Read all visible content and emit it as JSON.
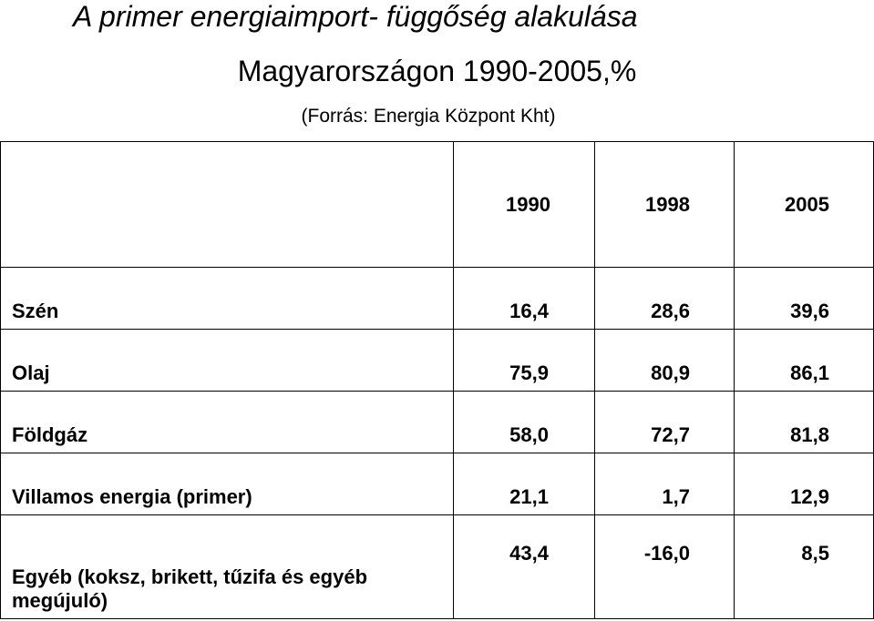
{
  "header": {
    "title_line1": "A primer energiaimport- függőség alakulása",
    "title_line2": "Magyarországon  1990-2005,%",
    "source": "(Forrás: Energia Központ Kht)"
  },
  "table": {
    "columns": [
      "1990",
      "1998",
      "2005"
    ],
    "rows": [
      [
        "Szén",
        "16,4",
        "28,6",
        "39,6"
      ],
      [
        "Olaj",
        "75,9",
        "80,9",
        "86,1"
      ],
      [
        "Földgáz",
        "58,0",
        "72,7",
        "81,8"
      ],
      [
        "Villamos energia (primer)",
        "21,1",
        "1,7",
        "12,9"
      ],
      [
        "Egyéb (koksz, brikett, tűzifa és egyéb megújuló)",
        "43,4",
        "-16,0",
        "8,5"
      ]
    ]
  }
}
